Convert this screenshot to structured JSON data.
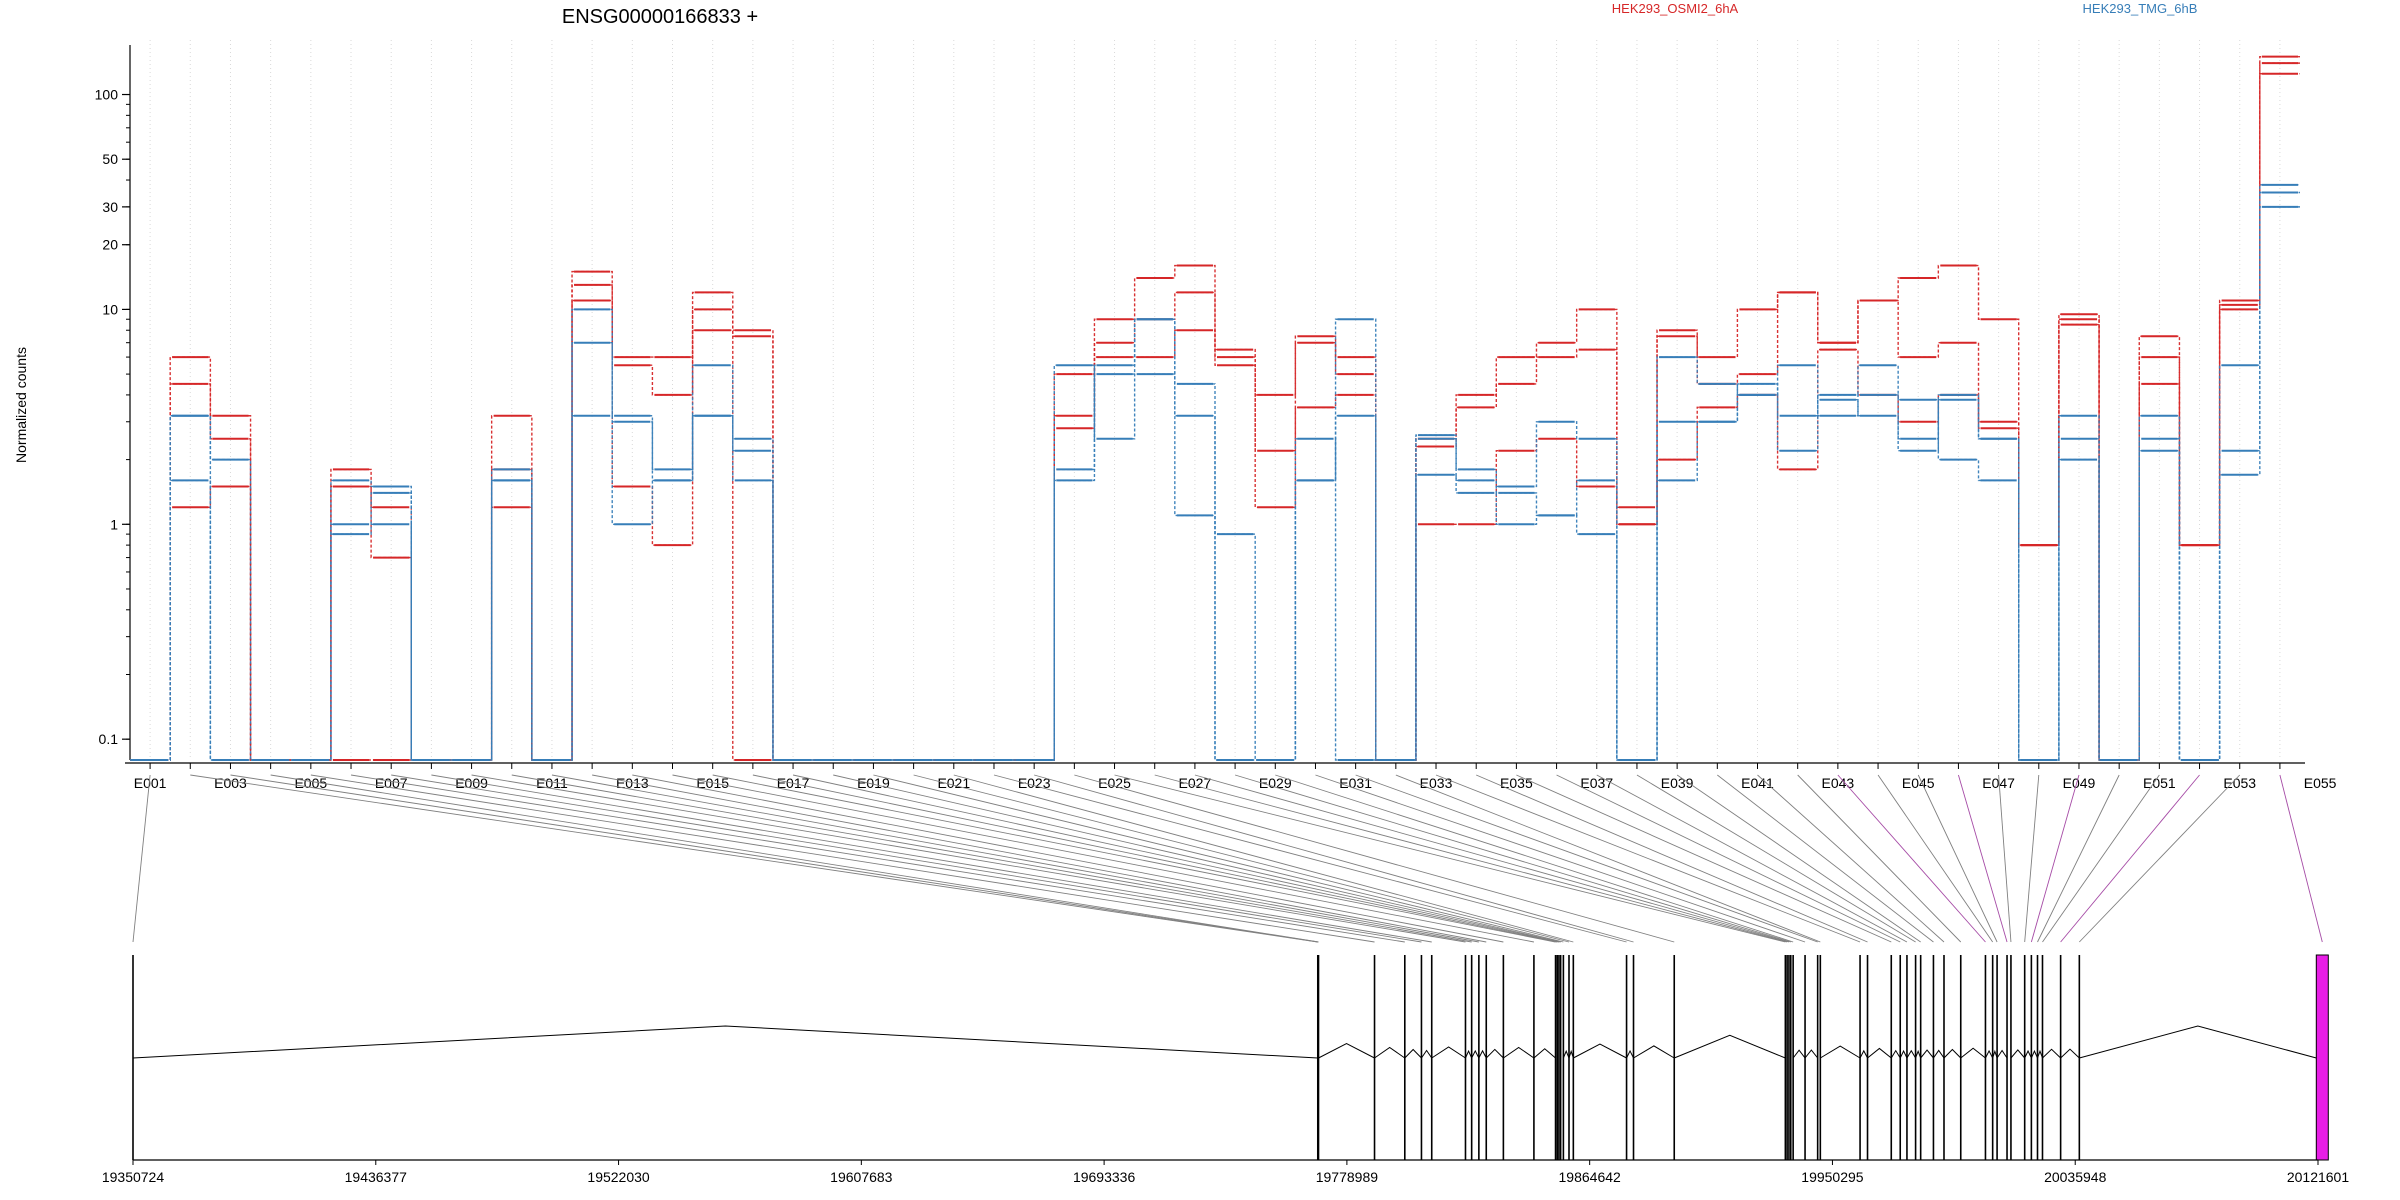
{
  "chart_data": {
    "type": "line",
    "title": "ENSG00000166833 +",
    "ylabel": "Normalized counts",
    "yscale": "log",
    "ylim": [
      0.08,
      170
    ],
    "grid": "vertical-dotted",
    "legend": [
      {
        "name": "HEK293_OSMI2_6hA",
        "color": "#d62728"
      },
      {
        "name": "HEK293_TMG_6hB",
        "color": "#377eb8"
      }
    ],
    "yticks": [
      {
        "value": 0.1,
        "label": "0.1"
      },
      {
        "value": 1,
        "label": "1"
      },
      {
        "value": 10,
        "label": "10"
      },
      {
        "value": 20,
        "label": "20"
      },
      {
        "value": 30,
        "label": "30"
      },
      {
        "value": 50,
        "label": "50"
      },
      {
        "value": 100,
        "label": "100"
      }
    ],
    "exon_labels": [
      "E001",
      "E003",
      "E005",
      "E007",
      "E009",
      "E011",
      "E013",
      "E015",
      "E017",
      "E019",
      "E021",
      "E023",
      "E025",
      "E027",
      "E029",
      "E031",
      "E033",
      "E035",
      "E037",
      "E039",
      "E041",
      "E043",
      "E045",
      "E047",
      "E049",
      "E051",
      "E053",
      "E055"
    ],
    "genomic_ticks": [
      "19350724",
      "19436377",
      "19522030",
      "19607683",
      "19693336",
      "19778989",
      "19864642",
      "19950295",
      "20035948",
      "20121601"
    ],
    "genomic_range": [
      19350724,
      20121601
    ],
    "series": [
      {
        "name": "HEK293_OSMI2_6hA",
        "color": "#d62728",
        "values": [
          0.08,
          6,
          3.2,
          0.08,
          0.08,
          1.8,
          1.2,
          0.08,
          0.08,
          3.2,
          0.08,
          15,
          6,
          6,
          12,
          8,
          0.08,
          0.08,
          0.08,
          0.08,
          0.08,
          0.08,
          0.08,
          3.2,
          9,
          14,
          16,
          6,
          4,
          7,
          6,
          0.08,
          2.5,
          4,
          6,
          7,
          10,
          1.2,
          8,
          6,
          10,
          12,
          7,
          11,
          14,
          16,
          9,
          0.8,
          9.5,
          0.08,
          7.5,
          0.8,
          11,
          150
        ]
      },
      {
        "name": "HEK293_OSMI2_6hA",
        "color": "#d62728",
        "values": [
          0.08,
          4.5,
          2.5,
          0.08,
          0.08,
          1.5,
          0.7,
          0.08,
          0.08,
          1.8,
          0.08,
          13,
          5.5,
          4,
          10,
          7.5,
          0.08,
          0.08,
          0.08,
          0.08,
          0.08,
          0.08,
          0.08,
          2.8,
          7,
          9,
          12,
          5.5,
          2.2,
          7.5,
          5,
          0.08,
          2.3,
          3.5,
          4.5,
          6,
          6.5,
          1,
          7.5,
          4.5,
          5,
          12,
          7,
          11,
          6,
          7,
          3,
          0.8,
          8.5,
          0.08,
          6,
          0.8,
          10.5,
          140
        ]
      },
      {
        "name": "HEK293_OSMI2_6hA",
        "color": "#d62728",
        "values": [
          0.08,
          1.2,
          1.5,
          0.08,
          0.08,
          0.08,
          0.08,
          0.08,
          0.08,
          1.2,
          0.08,
          11,
          1.5,
          0.8,
          8,
          0.08,
          0.08,
          0.08,
          0.08,
          0.08,
          0.08,
          0.08,
          0.08,
          5,
          6,
          6,
          8,
          6.5,
          1.2,
          3.5,
          4,
          0.08,
          1,
          1,
          2.2,
          2.5,
          1.5,
          1,
          2,
          3.5,
          4,
          1.8,
          6.5,
          4,
          3,
          4,
          2.8,
          0.8,
          9,
          0.08,
          4.5,
          0.8,
          10,
          125
        ]
      },
      {
        "name": "HEK293_TMG_6hB",
        "color": "#377eb8",
        "values": [
          0.08,
          3.2,
          2,
          0.08,
          0.08,
          0.9,
          1.4,
          0.08,
          0.08,
          1.8,
          0.08,
          10,
          3.2,
          1.8,
          3.2,
          2.2,
          0.08,
          0.08,
          0.08,
          0.08,
          0.08,
          0.08,
          0.08,
          1.8,
          5,
          9,
          4.5,
          0.9,
          0.08,
          1.6,
          9,
          0.08,
          2.5,
          1.8,
          1.5,
          3,
          2.5,
          0.08,
          6,
          4.5,
          4,
          5.5,
          3.2,
          4,
          2.5,
          4,
          2.5,
          0.08,
          3.2,
          0.08,
          3.2,
          0.08,
          2.2,
          30
        ]
      },
      {
        "name": "HEK293_TMG_6hB",
        "color": "#377eb8",
        "values": [
          0.08,
          1.6,
          0.08,
          0.08,
          0.08,
          1.6,
          1.5,
          0.08,
          0.08,
          1.6,
          0.08,
          7,
          3,
          1.6,
          5.5,
          2.5,
          0.08,
          0.08,
          0.08,
          0.08,
          0.08,
          0.08,
          0.08,
          1.6,
          5.5,
          9,
          1.1,
          0.08,
          0.08,
          1.6,
          3.2,
          0.08,
          1.7,
          1.6,
          1.4,
          1.1,
          1.6,
          0.08,
          3,
          3,
          4.5,
          2.2,
          4,
          5.5,
          3.8,
          2,
          1.6,
          0.08,
          2,
          0.08,
          2.5,
          0.08,
          1.7,
          38
        ]
      },
      {
        "name": "HEK293_TMG_6hB",
        "color": "#377eb8",
        "values": [
          0.08,
          3.2,
          0.08,
          0.08,
          0.08,
          1,
          1,
          0.08,
          0.08,
          1.6,
          0.08,
          3.2,
          1,
          1.6,
          3.2,
          1.6,
          0.08,
          0.08,
          0.08,
          0.08,
          0.08,
          0.08,
          0.08,
          5.5,
          2.5,
          5,
          3.2,
          0.08,
          0.08,
          2.5,
          0.08,
          0.08,
          2.6,
          1.4,
          1,
          1.1,
          0.9,
          0.08,
          1.6,
          3,
          4,
          3.2,
          3.8,
          3.2,
          2.2,
          3.8,
          2.5,
          0.08,
          2.5,
          0.08,
          2.2,
          0.08,
          5.5,
          35
        ]
      }
    ],
    "exon_starts": [
      19350724,
      19768720,
      19768850,
      19768980,
      19788740,
      19799420,
      19805300,
      19808920,
      19820830,
      19823010,
      19825550,
      19828160,
      19834200,
      19844970,
      19852600,
      19853200,
      19853800,
      19854400,
      19855370,
      19857350,
      19858880,
      19877660,
      19880110,
      19894480,
      19933680,
      19934300,
      19934950,
      19935590,
      19936430,
      19940630,
      19945080,
      19946020,
      19960040,
      19962670,
      19971050,
      19974210,
      19976580,
      19979630,
      19981420,
      19985930,
      19989650,
      19995560,
      20004280,
      20006820,
      20008380,
      20011890,
      20013270,
      20018120,
      20020480,
      20022640,
      20024400,
      20030800,
      20037400,
      20121000
    ]
  }
}
